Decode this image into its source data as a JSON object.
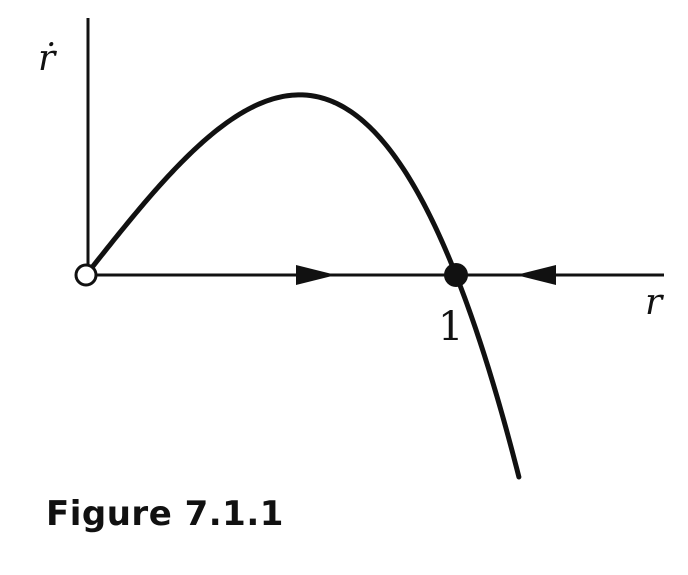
{
  "figure": {
    "caption": "Figure 7.1.1",
    "y_axis_label": "ṙ",
    "x_axis_label": "r",
    "fixed_point_label": "1"
  },
  "chart_data": {
    "type": "line",
    "x_axis_label": "r",
    "y_axis_label": "ṙ",
    "fixed_points": [
      {
        "r": 0,
        "stability": "unstable",
        "marker": "open-circle"
      },
      {
        "r": 1,
        "stability": "stable",
        "marker": "filled-circle"
      }
    ],
    "flow_arrows": [
      {
        "interval": "0 < r < 1",
        "direction": "right"
      },
      {
        "interval": "r > 1",
        "direction": "left"
      }
    ],
    "curve": "ṙ = r(1 − r²)"
  },
  "colors": {
    "ink": "#111111",
    "background": "#ffffff"
  }
}
